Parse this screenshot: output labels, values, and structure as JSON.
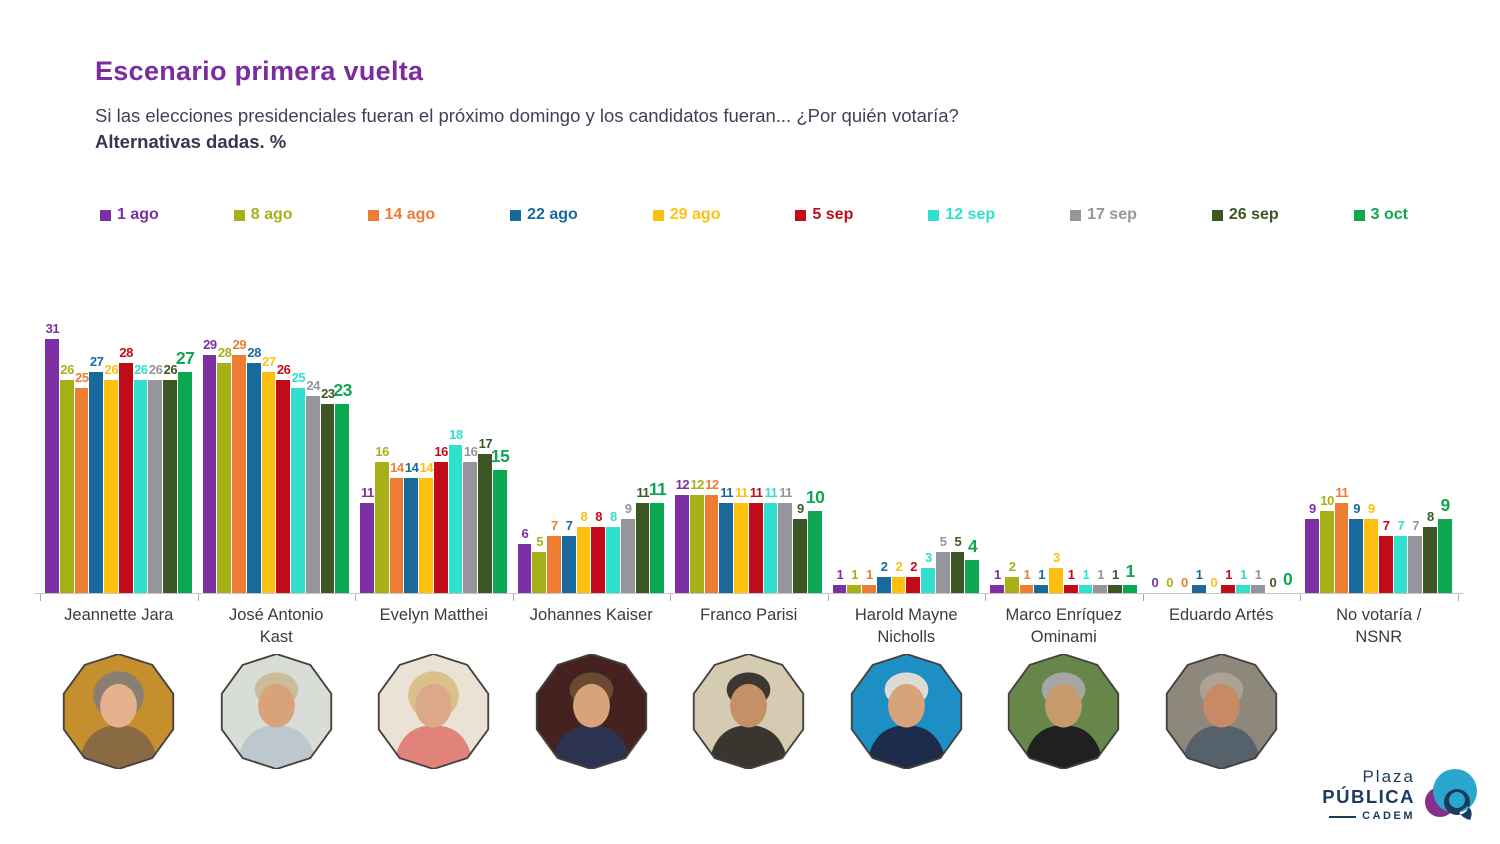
{
  "header": {
    "title": "Escenario primera vuelta",
    "subtitle": "Si las elecciones presidenciales fueran el próximo domingo y los candidatos fueran... ¿Por quién votaría?",
    "subtitle_bold": "Alternativas dadas. %"
  },
  "colors": {
    "title": "#7B2C9F",
    "logo_navy": "#16395E",
    "axis": "#C6C6C6"
  },
  "chart_data": {
    "type": "bar",
    "title": "Escenario primera vuelta",
    "unit": "%",
    "ylim": [
      0,
      31
    ],
    "grid": false,
    "legend_position": "top",
    "categories": [
      "Jeannette Jara",
      "José Antonio Kast",
      "Evelyn Matthei",
      "Johannes Kaiser",
      "Franco Parisi",
      "Harold Mayne Nicholls",
      "Marco Enríquez Ominami",
      "Eduardo Artés",
      "No votaría / NSNR"
    ],
    "tick_labels": [
      "Jeannette Jara",
      "José Antonio\nKast",
      "Evelyn Matthei",
      "Johannes Kaiser",
      "Franco Parisi",
      "Harold Mayne\nNicholls",
      "Marco Enríquez\nOminami",
      "Eduardo Artés",
      "No votaría /\nNSNR"
    ],
    "series": [
      {
        "name": "1 ago",
        "color": "#7D2FA4",
        "values": [
          31,
          29,
          11,
          6,
          12,
          1,
          1,
          0,
          9
        ]
      },
      {
        "name": "8 ago",
        "color": "#A7B117",
        "values": [
          26,
          28,
          16,
          5,
          12,
          1,
          2,
          0,
          10
        ]
      },
      {
        "name": "14 ago",
        "color": "#EC7D33",
        "values": [
          25,
          29,
          14,
          7,
          12,
          1,
          1,
          0,
          11
        ]
      },
      {
        "name": "22 ago",
        "color": "#1A699C",
        "values": [
          27,
          28,
          14,
          7,
          11,
          2,
          1,
          1,
          9
        ]
      },
      {
        "name": "29 ago",
        "color": "#FEC00F",
        "values": [
          26,
          27,
          14,
          8,
          11,
          2,
          3,
          0,
          9
        ]
      },
      {
        "name": "5 sep",
        "color": "#C20B19",
        "values": [
          28,
          26,
          16,
          8,
          11,
          2,
          1,
          1,
          7
        ]
      },
      {
        "name": "12 sep",
        "color": "#30DFCD",
        "values": [
          26,
          25,
          18,
          8,
          11,
          3,
          1,
          1,
          7
        ]
      },
      {
        "name": "17 sep",
        "color": "#95959B",
        "values": [
          26,
          24,
          16,
          9,
          11,
          5,
          1,
          1,
          7
        ]
      },
      {
        "name": "26 sep",
        "color": "#3C5724",
        "values": [
          26,
          23,
          17,
          11,
          9,
          5,
          1,
          0,
          8
        ]
      },
      {
        "name": "3 oct",
        "color": "#0CA851",
        "values": [
          27,
          23,
          15,
          11,
          10,
          4,
          1,
          0,
          9
        ]
      }
    ]
  },
  "avatars": [
    {
      "candidate": "Jeannette Jara",
      "bg": "#C58F2E",
      "hair": "#8A7E72",
      "skin": "#E6B28E",
      "suit": "#8A6A42",
      "long": true
    },
    {
      "candidate": "José Antonio Kast",
      "bg": "#D9DDD8",
      "hair": "#C9BD9C",
      "skin": "#D9A37A",
      "suit": "#BCC8CE",
      "long": false
    },
    {
      "candidate": "Evelyn Matthei",
      "bg": "#EAE3D5",
      "hair": "#D9C189",
      "skin": "#DBA98A",
      "suit": "#E0837A",
      "long": true
    },
    {
      "candidate": "Johannes Kaiser",
      "bg": "#45221F",
      "hair": "#6B4A33",
      "skin": "#D8A378",
      "suit": "#2B3350",
      "long": false
    },
    {
      "candidate": "Franco Parisi",
      "bg": "#D4CBB2",
      "hair": "#3E3633",
      "skin": "#C69066",
      "suit": "#3A362F",
      "long": false
    },
    {
      "candidate": "Harold Mayne Nicholls",
      "bg": "#1E8FC4",
      "hair": "#DCDCD4",
      "skin": "#D8A378",
      "suit": "#1C2C4A",
      "long": false
    },
    {
      "candidate": "Marco Enríquez Ominami",
      "bg": "#67874A",
      "hair": "#A6A6A6",
      "skin": "#C79A6B",
      "suit": "#20201E",
      "long": false
    },
    {
      "candidate": "Eduardo Artés",
      "bg": "#8E887C",
      "hair": "#ABA394",
      "skin": "#C78A66",
      "suit": "#55616B",
      "long": false
    }
  ],
  "logo": {
    "line1": "Plaza",
    "line2": "PÚBLICA",
    "line3": "CADEM",
    "icon": "speech-bubble-swirl-icon",
    "teal": "#2AA7CC",
    "purple": "#872E8E",
    "navy": "#1B3A5C"
  }
}
